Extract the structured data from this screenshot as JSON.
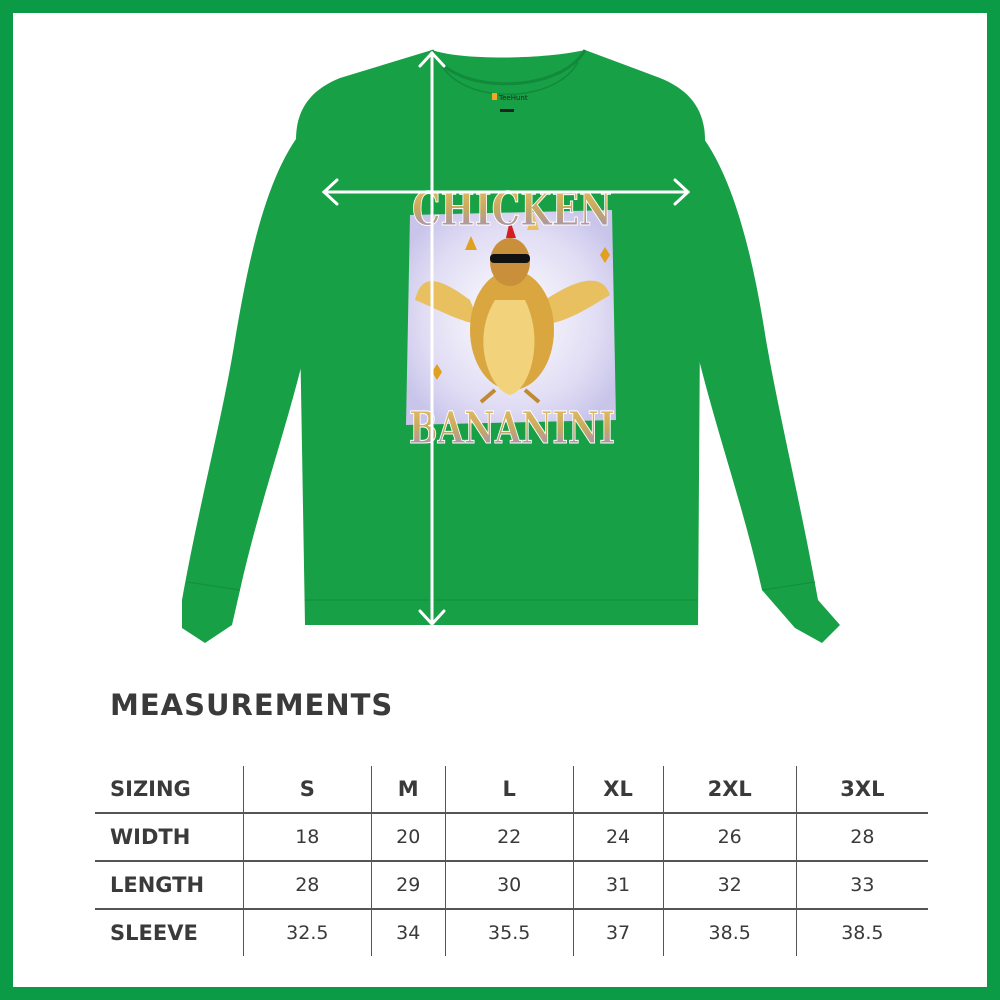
{
  "shirt": {
    "color": "#17a045",
    "label_brand": "TeeHunt",
    "print_top": "CHICKEN",
    "print_bottom": "BANANINI"
  },
  "measurements": {
    "title": "MEASUREMENTS",
    "header": [
      "SIZING",
      "S",
      "M",
      "L",
      "XL",
      "2XL",
      "3XL"
    ],
    "rows": [
      [
        "WIDTH",
        "18",
        "20",
        "22",
        "24",
        "26",
        "28"
      ],
      [
        "LENGTH",
        "28",
        "29",
        "30",
        "31",
        "32",
        "33"
      ],
      [
        "SLEEVE",
        "32.5",
        "34",
        "35.5",
        "37",
        "38.5",
        "38.5"
      ]
    ]
  },
  "colors": {
    "frame": "#0b9b47",
    "text": "#3a3a3a"
  }
}
